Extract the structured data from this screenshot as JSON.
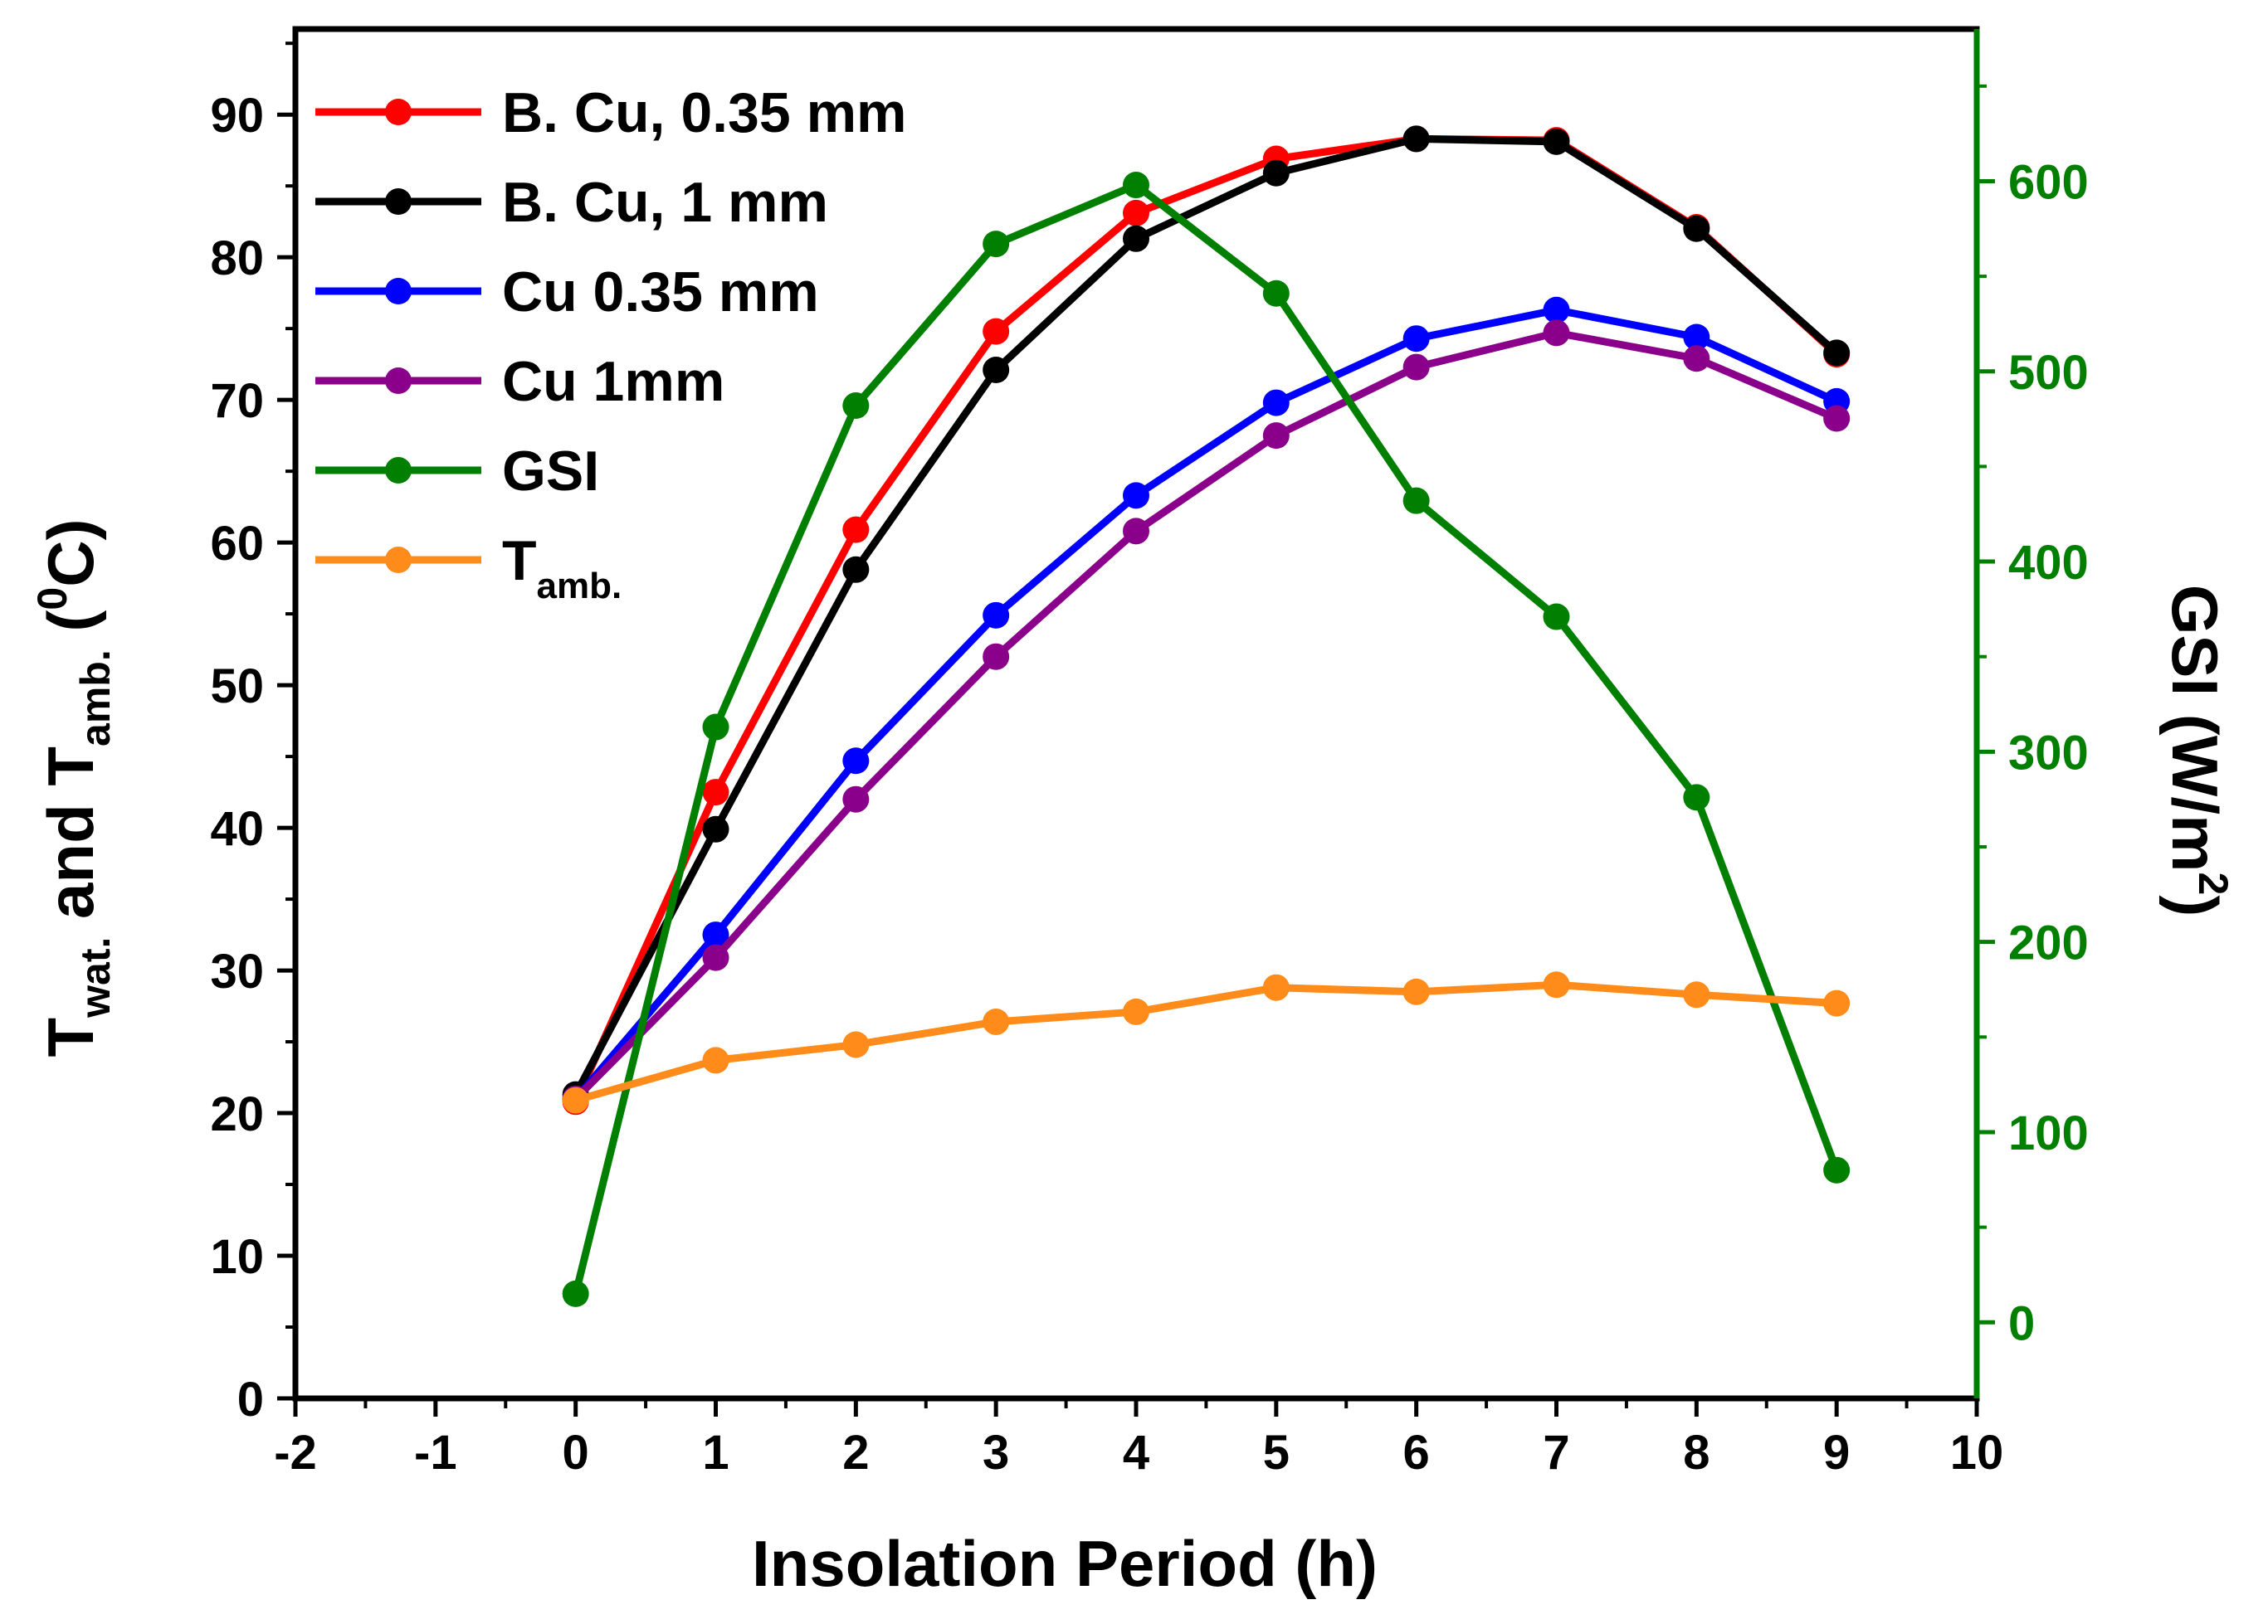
{
  "chart_data": {
    "type": "line",
    "x": [
      0,
      1,
      2,
      3,
      4,
      5,
      6,
      7,
      8,
      9
    ],
    "series": [
      {
        "name": "B. Cu, 0.35 mm",
        "axis": "left",
        "color": "#ff0000",
        "values": [
          20.8,
          42.5,
          60.9,
          74.8,
          83.1,
          86.9,
          88.3,
          88.2,
          82.1,
          73.2
        ]
      },
      {
        "name": "B. Cu, 1 mm",
        "axis": "left",
        "color": "#000000",
        "values": [
          21.3,
          39.9,
          58.1,
          72.1,
          81.3,
          85.9,
          88.3,
          88.1,
          82.0,
          73.3
        ]
      },
      {
        "name": "Cu 0.35 mm",
        "axis": "left",
        "color": "#0000ff",
        "values": [
          21.0,
          32.5,
          44.7,
          54.9,
          63.3,
          69.8,
          74.3,
          76.3,
          74.4,
          69.9
        ]
      },
      {
        "name": "Cu 1mm",
        "axis": "left",
        "color": "#8b008b",
        "values": [
          21.0,
          30.9,
          42.0,
          52.0,
          60.8,
          67.5,
          72.3,
          74.7,
          72.9,
          68.7
        ]
      },
      {
        "name": "GSI",
        "axis": "right",
        "color": "#007f00",
        "values": [
          15,
          313,
          482,
          567,
          598,
          541,
          432,
          371,
          276,
          80
        ]
      },
      {
        "name": "T",
        "name_sub": "amb.",
        "axis": "left",
        "color": "#ff8c1a",
        "values": [
          20.9,
          23.7,
          24.8,
          26.4,
          27.1,
          28.8,
          28.5,
          29.0,
          28.3,
          27.7
        ]
      }
    ],
    "xlabel": "Insolation Period (h)",
    "ylabel": {
      "p1": "T",
      "sub1": "wat.",
      "p2": " and T",
      "sub2": "amb.",
      "p3": " (",
      "sup": "0",
      "p4": "C)"
    },
    "y2label": {
      "p1": "GSI (W/m",
      "sup": "2",
      "p2": ")"
    },
    "xlim": [
      -2,
      10
    ],
    "ylim": [
      0,
      96
    ],
    "y2lim": [
      -40,
      680
    ],
    "x_ticks": [
      "-2",
      "-1",
      "0",
      "1",
      "2",
      "3",
      "4",
      "5",
      "6",
      "7",
      "8",
      "9",
      "10"
    ],
    "y_ticks": [
      "0",
      "10",
      "20",
      "30",
      "40",
      "50",
      "60",
      "70",
      "80",
      "90"
    ],
    "y2_ticks": [
      "0",
      "100",
      "200",
      "300",
      "400",
      "500",
      "600"
    ],
    "y2_color": "#007f00",
    "legend_position": "top-left"
  }
}
